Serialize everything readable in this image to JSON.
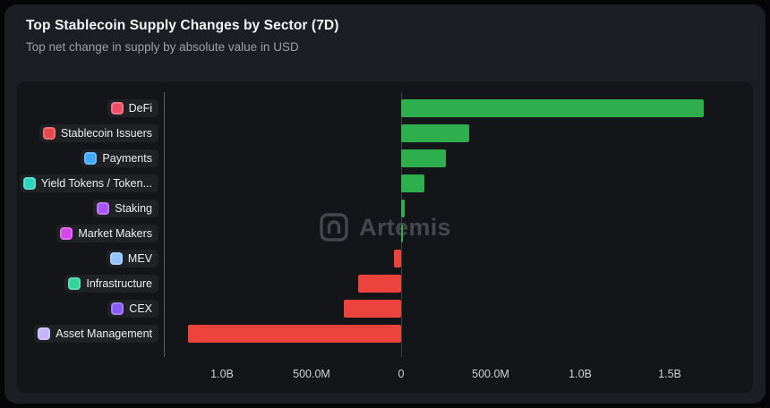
{
  "header": {
    "title": "Top Stablecoin Supply Changes by Sector (7D)",
    "subtitle": "Top net change in supply by absolute value in USD"
  },
  "watermark": {
    "label": "Artemis"
  },
  "chart_data": {
    "type": "bar",
    "orientation": "horizontal",
    "title": "Top Stablecoin Supply Changes by Sector (7D)",
    "subtitle": "Top net change in supply by absolute value in USD",
    "unit": "USD (billions)",
    "grid": false,
    "legend": "none",
    "xlim": [
      -1.3,
      1.8
    ],
    "categories": [
      "DeFi",
      "Stablecoin Issuers",
      "Payments",
      "Yield Tokens / Token...",
      "Staking",
      "Market Makers",
      "MEV",
      "Infrastructure",
      "CEX",
      "Asset Management"
    ],
    "values_billions": [
      1.69,
      0.38,
      0.25,
      0.13,
      0.02,
      0.01,
      -0.04,
      -0.24,
      -0.32,
      -1.19
    ],
    "icon_colors": [
      "#ef5066",
      "#e8474b",
      "#3fa9f5",
      "#2dd4bf",
      "#a855f7",
      "#d946ef",
      "#93c5fd",
      "#34d399",
      "#8b5cf6",
      "#c4b5fd"
    ],
    "x_ticks": [
      {
        "value": -1.0,
        "label": "1.0B"
      },
      {
        "value": -0.5,
        "label": "500.0M"
      },
      {
        "value": 0,
        "label": "0"
      },
      {
        "value": 0.5,
        "label": "500.0M"
      },
      {
        "value": 1.0,
        "label": "1.0B"
      },
      {
        "value": 1.5,
        "label": "1.5B"
      }
    ],
    "colors": {
      "positive": "#2fae4d",
      "negative": "#ec443c"
    }
  }
}
